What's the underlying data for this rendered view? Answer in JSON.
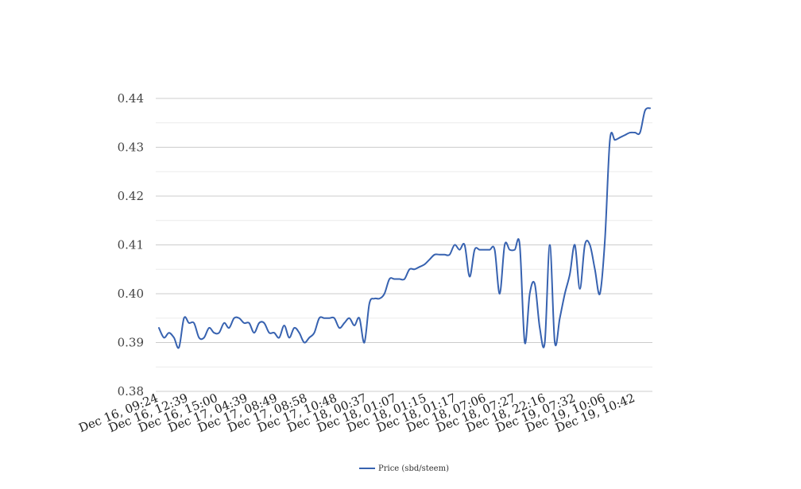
{
  "chart_data": {
    "type": "line",
    "ylim": [
      0.38,
      0.44
    ],
    "yticks": [
      "0.38",
      "0.39",
      "0.40",
      "0.41",
      "0.42",
      "0.43",
      "0.44"
    ],
    "xtick_labels": [
      "Dec 16, 09:24",
      "Dec 16, 12:39",
      "Dec 16, 15:00",
      "Dec 17, 04:39",
      "Dec 17, 08:49",
      "Dec 17, 08:58",
      "Dec 17, 10:48",
      "Dec 18, 00:37",
      "Dec 18, 01:07",
      "Dec 18, 01:15",
      "Dec 18, 01:17",
      "Dec 18, 07:06",
      "Dec 18, 07:27",
      "Dec 18, 22:16",
      "Dec 19, 07:32",
      "Dec 19, 10:06",
      "Dec 19, 10:42"
    ],
    "grid": true,
    "legend": "bottom",
    "series": [
      {
        "name": "Price (sbd/steem)",
        "color": "#3762b0",
        "values": [
          0.393,
          0.391,
          0.392,
          0.391,
          0.389,
          0.395,
          0.394,
          0.394,
          0.391,
          0.391,
          0.393,
          0.392,
          0.392,
          0.394,
          0.393,
          0.395,
          0.395,
          0.394,
          0.394,
          0.392,
          0.394,
          0.394,
          0.392,
          0.392,
          0.391,
          0.3935,
          0.391,
          0.393,
          0.392,
          0.39,
          0.391,
          0.392,
          0.395,
          0.395,
          0.395,
          0.395,
          0.393,
          0.394,
          0.395,
          0.3935,
          0.395,
          0.39,
          0.398,
          0.399,
          0.399,
          0.4,
          0.403,
          0.403,
          0.403,
          0.403,
          0.405,
          0.405,
          0.4055,
          0.406,
          0.407,
          0.408,
          0.408,
          0.408,
          0.408,
          0.41,
          0.409,
          0.41,
          0.4035,
          0.409,
          0.409,
          0.409,
          0.409,
          0.409,
          0.4,
          0.41,
          0.409,
          0.409,
          0.41,
          0.39,
          0.4,
          0.402,
          0.393,
          0.39,
          0.41,
          0.39,
          0.395,
          0.4,
          0.404,
          0.41,
          0.401,
          0.41,
          0.41,
          0.405,
          0.4,
          0.411,
          0.4315,
          0.4315,
          0.432,
          0.4325,
          0.433,
          0.433,
          0.433,
          0.4375,
          0.438
        ]
      }
    ]
  }
}
